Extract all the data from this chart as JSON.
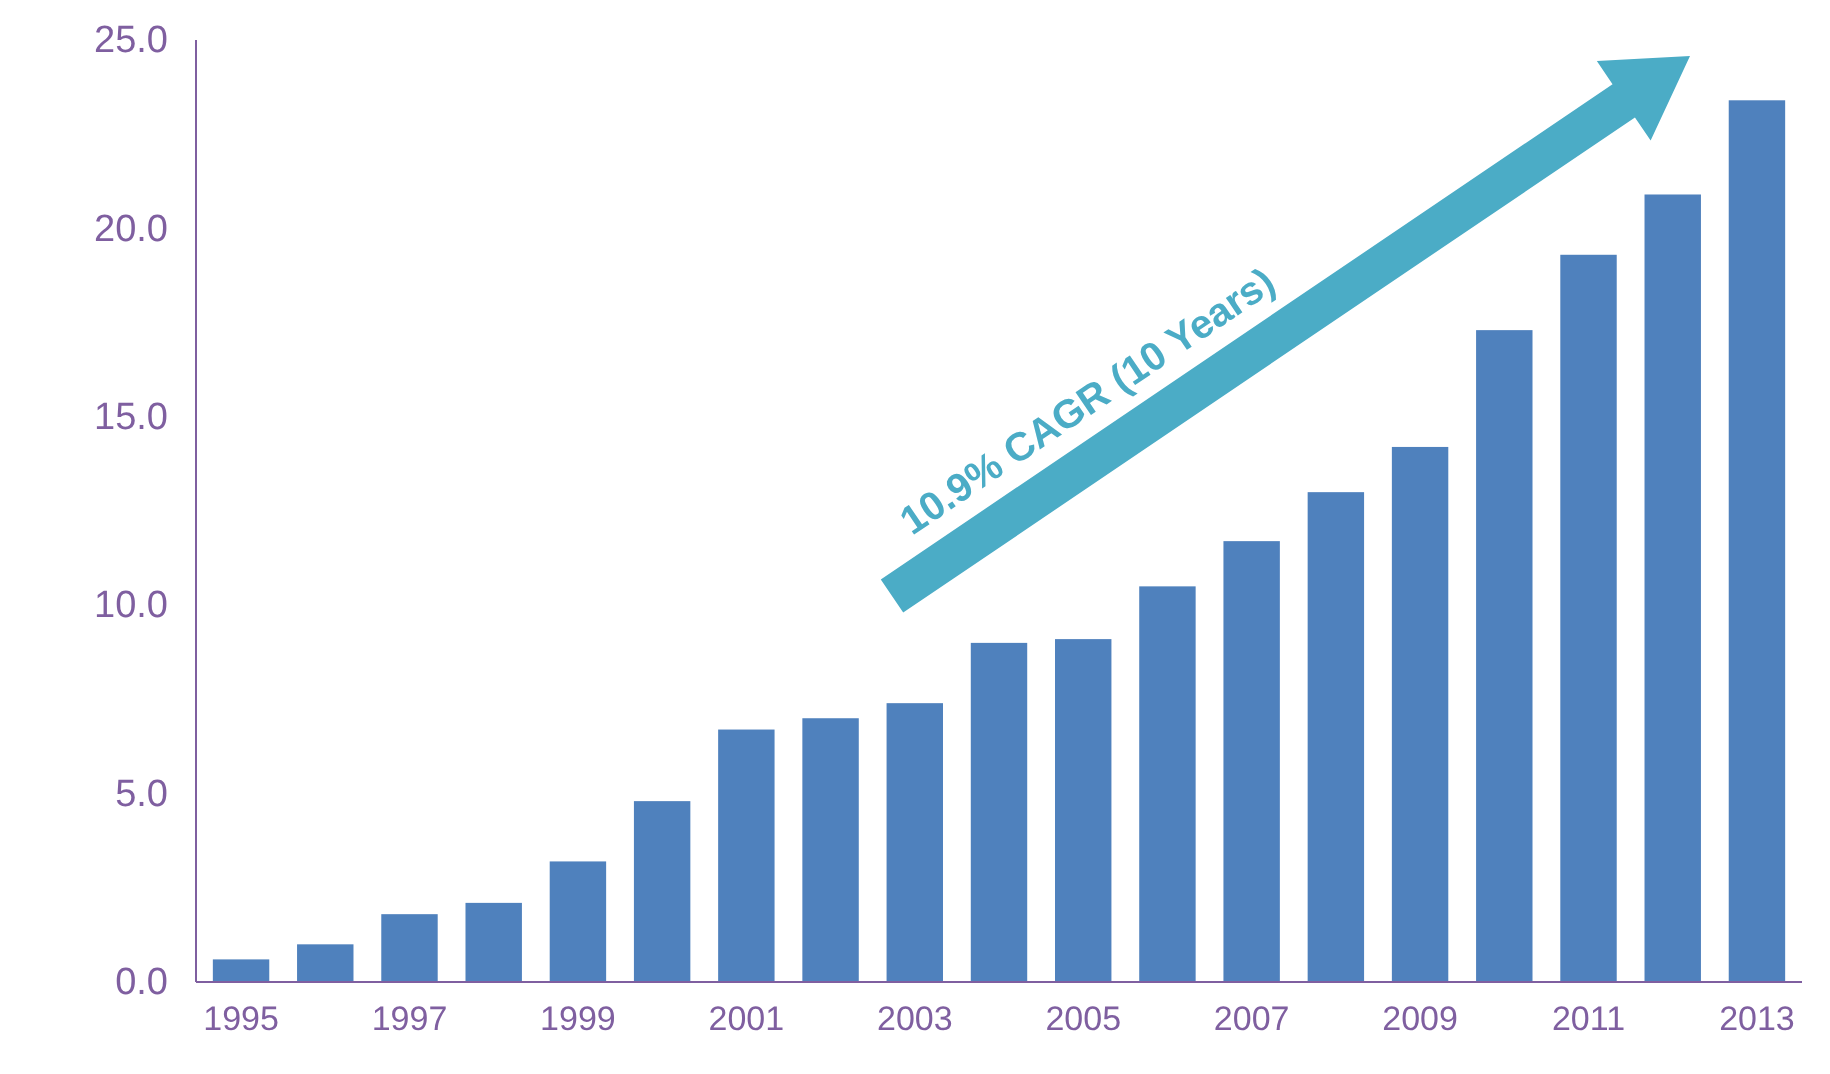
{
  "chart_data": {
    "type": "bar",
    "categories": [
      "1995",
      null,
      "1997",
      null,
      "1999",
      null,
      "2001",
      null,
      "2003",
      null,
      "2005",
      null,
      "2007",
      null,
      "2009",
      null,
      "2011",
      null,
      "2013"
    ],
    "values": [
      0.6,
      1.0,
      1.8,
      2.1,
      3.2,
      4.8,
      6.7,
      7.0,
      7.4,
      9.0,
      9.1,
      10.5,
      11.7,
      13.0,
      14.2,
      17.3,
      19.3,
      20.9,
      23.4
    ],
    "color": "#4f81bd",
    "ylim": [
      0,
      25
    ],
    "yticks": [
      {
        "value": 0,
        "label": "0.0"
      },
      {
        "value": 5,
        "label": "5.0"
      },
      {
        "value": 10,
        "label": "10.0"
      },
      {
        "value": 15,
        "label": "15.0"
      },
      {
        "value": 20,
        "label": "20.0"
      },
      {
        "value": 25,
        "label": "25.0"
      }
    ],
    "grid": false,
    "annotations": [
      "10.9% CAGR (10 Years)"
    ]
  }
}
